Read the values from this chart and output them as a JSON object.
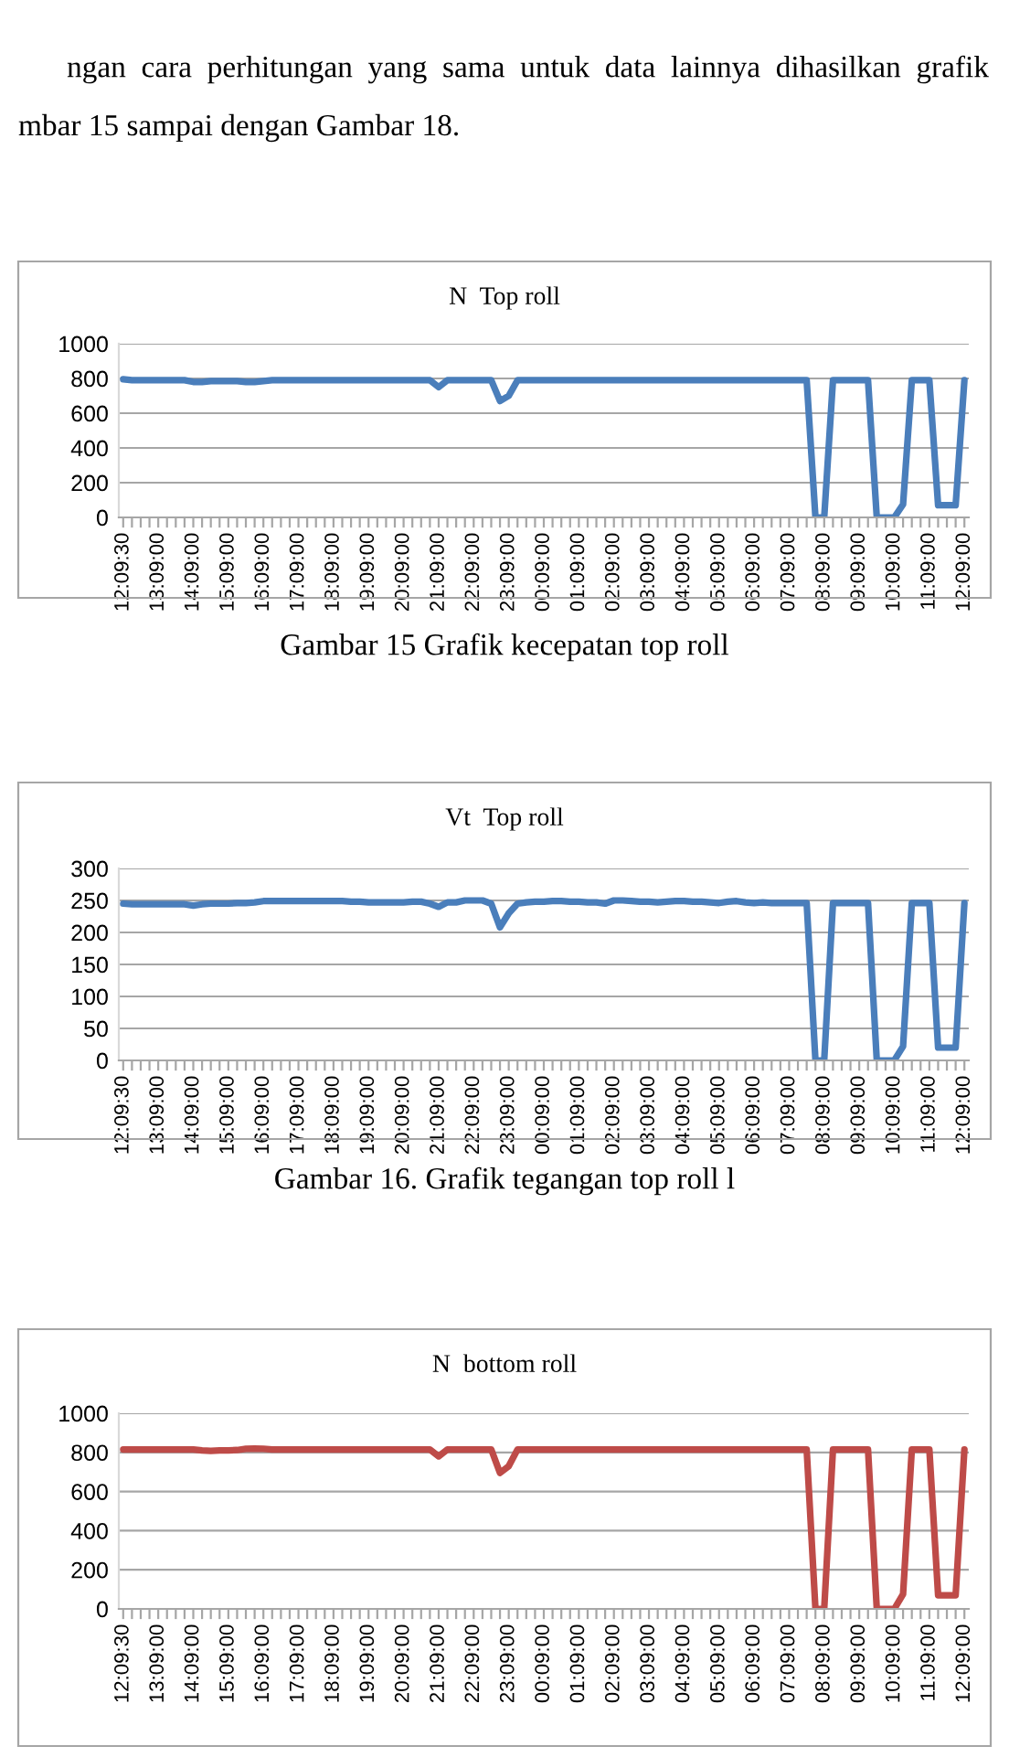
{
  "chart_data": [
    {
      "type": "line",
      "title": "N  Top roll",
      "color": "#4a7ebb",
      "ylim": [
        0,
        1000
      ],
      "yticks": [
        0,
        200,
        400,
        600,
        800,
        1000
      ],
      "grid": "y",
      "marker": "none",
      "line_style": "solid",
      "annotations": [
        "ngan  cara  perhitungan  yang  sama  untuk  data  lainnya  dihasilkan  grafik",
        "mbar 15 sampai dengan Gambar 18.",
        "Gambar 15 Grafik kecepatan top roll"
      ],
      "categories": [
        "12:09:30",
        null,
        null,
        null,
        "13:09:00",
        null,
        null,
        null,
        "14:09:00",
        null,
        null,
        null,
        "15:09:00",
        null,
        null,
        null,
        "16:09:00",
        null,
        null,
        null,
        "17:09:00",
        null,
        null,
        null,
        "18:09:00",
        null,
        null,
        null,
        "19:09:00",
        null,
        null,
        null,
        "20:09:00",
        null,
        null,
        null,
        "21:09:00",
        null,
        null,
        null,
        "22:09:00",
        null,
        null,
        null,
        "23:09:00",
        null,
        null,
        null,
        "00:09:00",
        null,
        null,
        null,
        "01:09:00",
        null,
        null,
        null,
        "02:09:00",
        null,
        null,
        null,
        "03:09:00",
        null,
        null,
        null,
        "04:09:00",
        null,
        null,
        null,
        "05:09:00",
        null,
        null,
        null,
        "06:09:00",
        null,
        null,
        null,
        "07:09:00",
        null,
        null,
        null,
        "08:09:00",
        null,
        null,
        null,
        "09:09:00",
        null,
        null,
        null,
        "10:09:00",
        null,
        null,
        null,
        "11:09:00",
        null,
        null,
        null,
        "12:09:00"
      ],
      "values": [
        795,
        790,
        790,
        790,
        790,
        790,
        790,
        790,
        780,
        780,
        785,
        785,
        785,
        785,
        780,
        780,
        785,
        790,
        790,
        790,
        790,
        790,
        790,
        790,
        790,
        790,
        790,
        790,
        790,
        790,
        790,
        790,
        790,
        790,
        790,
        790,
        750,
        790,
        790,
        790,
        790,
        790,
        790,
        670,
        700,
        790,
        790,
        790,
        790,
        790,
        790,
        790,
        790,
        790,
        790,
        790,
        790,
        790,
        790,
        790,
        790,
        790,
        790,
        790,
        790,
        790,
        790,
        790,
        790,
        790,
        790,
        790,
        790,
        790,
        790,
        790,
        790,
        790,
        790,
        0,
        0,
        790,
        790,
        790,
        790,
        790,
        0,
        0,
        0,
        75,
        790,
        790,
        790,
        70,
        70,
        70,
        790
      ]
    },
    {
      "type": "line",
      "title": "Vt  Top roll",
      "color": "#4a7ebb",
      "ylim": [
        0,
        300
      ],
      "yticks": [
        0,
        50,
        100,
        150,
        200,
        250,
        300
      ],
      "grid": "y",
      "marker": "none",
      "line_style": "solid",
      "annotations": [
        "Gambar 16. Grafik tegangan top roll l"
      ],
      "categories": [
        "12:09:30",
        null,
        null,
        null,
        "13:09:00",
        null,
        null,
        null,
        "14:09:00",
        null,
        null,
        null,
        "15:09:00",
        null,
        null,
        null,
        "16:09:00",
        null,
        null,
        null,
        "17:09:00",
        null,
        null,
        null,
        "18:09:00",
        null,
        null,
        null,
        "19:09:00",
        null,
        null,
        null,
        "20:09:00",
        null,
        null,
        null,
        "21:09:00",
        null,
        null,
        null,
        "22:09:00",
        null,
        null,
        null,
        "23:09:00",
        null,
        null,
        null,
        "00:09:00",
        null,
        null,
        null,
        "01:09:00",
        null,
        null,
        null,
        "02:09:00",
        null,
        null,
        null,
        "03:09:00",
        null,
        null,
        null,
        "04:09:00",
        null,
        null,
        null,
        "05:09:00",
        null,
        null,
        null,
        "06:09:00",
        null,
        null,
        null,
        "07:09:00",
        null,
        null,
        null,
        "08:09:00",
        null,
        null,
        null,
        "09:09:00",
        null,
        null,
        null,
        "10:09:00",
        null,
        null,
        null,
        "11:09:00",
        null,
        null,
        null,
        "12:09:00"
      ],
      "values": [
        245,
        244,
        244,
        244,
        244,
        244,
        244,
        244,
        242,
        244,
        245,
        245,
        245,
        246,
        246,
        247,
        249,
        249,
        249,
        249,
        249,
        249,
        249,
        249,
        249,
        249,
        248,
        248,
        247,
        247,
        247,
        247,
        247,
        248,
        248,
        245,
        240,
        247,
        247,
        250,
        250,
        250,
        245,
        208,
        230,
        245,
        247,
        248,
        248,
        249,
        249,
        248,
        248,
        247,
        247,
        245,
        250,
        250,
        249,
        248,
        248,
        247,
        248,
        249,
        249,
        248,
        248,
        247,
        246,
        248,
        249,
        247,
        246,
        247,
        246,
        246,
        246,
        246,
        246,
        0,
        0,
        246,
        246,
        246,
        246,
        246,
        0,
        0,
        0,
        22,
        246,
        246,
        246,
        20,
        20,
        20,
        246
      ]
    },
    {
      "type": "line",
      "title": "N  bottom roll",
      "color": "#be4b48",
      "ylim": [
        0,
        1000
      ],
      "yticks": [
        0,
        200,
        400,
        600,
        800,
        1000
      ],
      "grid": "y",
      "marker": "none",
      "line_style": "solid",
      "categories": [
        "12:09:30",
        null,
        null,
        null,
        "13:09:00",
        null,
        null,
        null,
        "14:09:00",
        null,
        null,
        null,
        "15:09:00",
        null,
        null,
        null,
        "16:09:00",
        null,
        null,
        null,
        "17:09:00",
        null,
        null,
        null,
        "18:09:00",
        null,
        null,
        null,
        "19:09:00",
        null,
        null,
        null,
        "20:09:00",
        null,
        null,
        null,
        "21:09:00",
        null,
        null,
        null,
        "22:09:00",
        null,
        null,
        null,
        "23:09:00",
        null,
        null,
        null,
        "00:09:00",
        null,
        null,
        null,
        "01:09:00",
        null,
        null,
        null,
        "02:09:00",
        null,
        null,
        null,
        "03:09:00",
        null,
        null,
        null,
        "04:09:00",
        null,
        null,
        null,
        "05:09:00",
        null,
        null,
        null,
        "06:09:00",
        null,
        null,
        null,
        "07:09:00",
        null,
        null,
        null,
        "08:09:00",
        null,
        null,
        null,
        "09:09:00",
        null,
        null,
        null,
        "10:09:00",
        null,
        null,
        null,
        "11:09:00",
        null,
        null,
        null,
        "12:09:00"
      ],
      "values": [
        815,
        815,
        815,
        815,
        815,
        815,
        815,
        815,
        815,
        810,
        808,
        810,
        810,
        812,
        818,
        820,
        818,
        815,
        815,
        815,
        815,
        815,
        815,
        815,
        815,
        815,
        815,
        815,
        815,
        815,
        815,
        815,
        815,
        815,
        815,
        815,
        780,
        815,
        815,
        815,
        815,
        815,
        815,
        695,
        730,
        815,
        815,
        815,
        815,
        815,
        815,
        815,
        815,
        815,
        815,
        815,
        815,
        815,
        815,
        815,
        815,
        815,
        815,
        815,
        815,
        815,
        815,
        815,
        815,
        815,
        815,
        815,
        815,
        815,
        815,
        815,
        815,
        815,
        815,
        0,
        0,
        815,
        815,
        815,
        815,
        815,
        0,
        0,
        0,
        75,
        815,
        815,
        815,
        70,
        70,
        70,
        815
      ]
    }
  ]
}
